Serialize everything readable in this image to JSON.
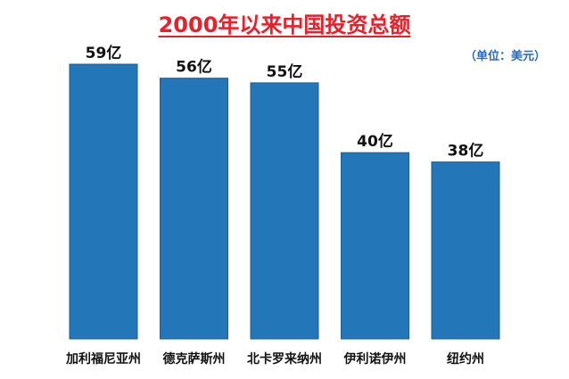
{
  "chart_data": {
    "type": "bar",
    "title": "2000年以来中国投资总额",
    "unit_note": "（单位：美元）",
    "categories": [
      "加利福尼亚州",
      "德克萨斯州",
      "北卡罗来纳州",
      "伊利诺伊州",
      "纽约州"
    ],
    "values": [
      59,
      56,
      55,
      40,
      38
    ],
    "data_labels": [
      "59亿",
      "56亿",
      "55亿",
      "40亿",
      "38亿"
    ],
    "ylim": [
      0,
      60
    ],
    "grid": false,
    "legend": "none",
    "bar_color": "#2376b8",
    "title_color": "#e8202a",
    "unit_note_color": "#2a6ab8"
  }
}
